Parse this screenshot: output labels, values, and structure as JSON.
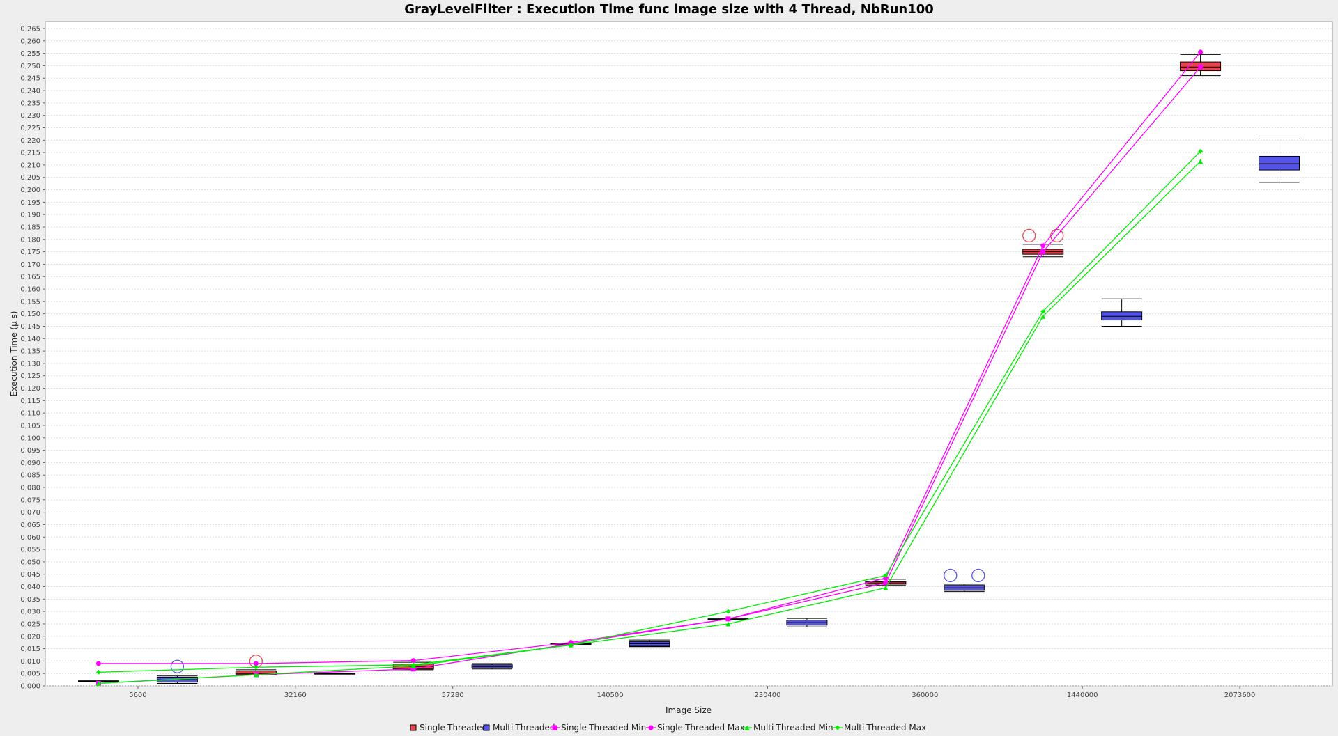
{
  "chart_data": {
    "type": "box",
    "title": "GrayLevelFilter : Execution Time func image size with 4 Thread, NbRun100",
    "xlabel": "Image Size",
    "ylabel": "Execution Time (µ s)",
    "ylim": [
      0,
      0.265
    ],
    "ytick_step": 0.005,
    "categories": [
      "5600",
      "32160",
      "57280",
      "140500",
      "230400",
      "360000",
      "1440000",
      "2073600"
    ],
    "grid": true,
    "legend_placement": "bottom",
    "box_series": [
      {
        "name": "Single-Threaded",
        "color": "#e8474f",
        "boxes": [
          {
            "min": 0.002,
            "q1": 0.002,
            "median": 0.002,
            "q3": 0.002,
            "max": 0.002,
            "outliers": []
          },
          {
            "min": 0.0045,
            "q1": 0.0045,
            "median": 0.005,
            "q3": 0.006,
            "max": 0.0065,
            "outliers": [
              0.0099
            ]
          },
          {
            "min": 0.0065,
            "q1": 0.0068,
            "median": 0.0078,
            "q3": 0.0088,
            "max": 0.0095,
            "outliers": []
          },
          {
            "min": 0.017,
            "q1": 0.017,
            "median": 0.017,
            "q3": 0.017,
            "max": 0.017,
            "outliers": []
          },
          {
            "min": 0.027,
            "q1": 0.027,
            "median": 0.027,
            "q3": 0.027,
            "max": 0.027,
            "outliers": []
          },
          {
            "min": 0.0405,
            "q1": 0.041,
            "median": 0.0415,
            "q3": 0.042,
            "max": 0.043,
            "outliers": []
          },
          {
            "min": 0.173,
            "q1": 0.174,
            "median": 0.175,
            "q3": 0.176,
            "max": 0.178,
            "outliers": [
              0.1815,
              0.1815
            ]
          },
          {
            "min": 0.246,
            "q1": 0.248,
            "median": 0.2495,
            "q3": 0.2515,
            "max": 0.2545,
            "outliers": []
          }
        ]
      },
      {
        "name": "Multi-Threaded",
        "color": "#5353e8",
        "boxes": [
          {
            "min": 0.001,
            "q1": 0.0015,
            "median": 0.0025,
            "q3": 0.0035,
            "max": 0.004,
            "outliers": [
              0.0078
            ]
          },
          {
            "min": 0.005,
            "q1": 0.005,
            "median": 0.005,
            "q3": 0.005,
            "max": 0.005,
            "outliers": []
          },
          {
            "min": 0.0068,
            "q1": 0.0072,
            "median": 0.0078,
            "q3": 0.0085,
            "max": 0.009,
            "outliers": []
          },
          {
            "min": 0.0158,
            "q1": 0.016,
            "median": 0.017,
            "q3": 0.0178,
            "max": 0.0185,
            "outliers": []
          },
          {
            "min": 0.0238,
            "q1": 0.0245,
            "median": 0.0255,
            "q3": 0.0265,
            "max": 0.0272,
            "outliers": []
          },
          {
            "min": 0.038,
            "q1": 0.0385,
            "median": 0.0395,
            "q3": 0.0405,
            "max": 0.041,
            "outliers": [
              0.0445,
              0.0445
            ]
          },
          {
            "min": 0.145,
            "q1": 0.1475,
            "median": 0.149,
            "q3": 0.1508,
            "max": 0.156,
            "outliers": []
          },
          {
            "min": 0.203,
            "q1": 0.208,
            "median": 0.2105,
            "q3": 0.2135,
            "max": 0.2205,
            "outliers": []
          }
        ]
      }
    ],
    "line_series": [
      {
        "name": "Single-Threaded Min",
        "color": "#ff00ff",
        "marker": "square",
        "values": [
          0.001,
          0.0045,
          0.0068,
          0.017,
          0.027,
          0.0415,
          0.175,
          0.2495
        ]
      },
      {
        "name": "Single-Threaded Max",
        "color": "#ff00ff",
        "marker": "circle",
        "values": [
          0.009,
          0.009,
          0.0102,
          0.0175,
          0.027,
          0.0435,
          0.1775,
          0.2555
        ]
      },
      {
        "name": "Multi-Threaded Min",
        "color": "#00ee00",
        "marker": "triangle",
        "values": [
          0.001,
          0.0045,
          0.008,
          0.0165,
          0.025,
          0.0395,
          0.149,
          0.2115
        ]
      },
      {
        "name": "Multi-Threaded Max",
        "color": "#00ee00",
        "marker": "diamond",
        "values": [
          0.0055,
          0.0075,
          0.0085,
          0.0165,
          0.03,
          0.0445,
          0.151,
          0.2155
        ]
      }
    ]
  }
}
